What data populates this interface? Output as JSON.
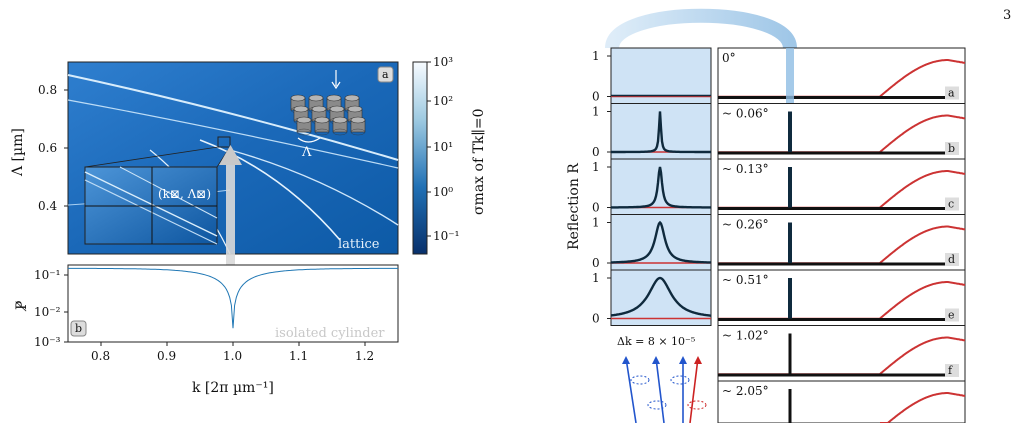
{
  "page_number": "3",
  "left_figure": {
    "panel_a": {
      "badge": "a",
      "lattice_label": "lattice",
      "y_label": "Λ [µm]",
      "y_ticks": [
        "0.8",
        "0.6",
        "0.4"
      ],
      "colorbar_label": "σmax of Tk∥=0",
      "colorbar_ticks": [
        "10³",
        "10²",
        "10¹",
        "10⁰",
        "10⁻¹"
      ],
      "inset_label": "(k⊠, Λ⊠)",
      "lambda_label": "Λ"
    },
    "panel_b": {
      "badge": "b",
      "y_label": "P̸",
      "y_ticks": [
        "10⁻¹",
        "10⁻²",
        "10⁻³"
      ],
      "isolated_label": "isolated cylinder",
      "x_ticks": [
        "0.8",
        "0.9",
        "1.0",
        "1.1",
        "1.2"
      ],
      "x_label": "k [2π µm⁻¹]"
    }
  },
  "right_figure": {
    "y_label": "Reflection R",
    "rows": [
      {
        "angle": "0°",
        "badge": "a"
      },
      {
        "angle": "~ 0.06°",
        "badge": "b"
      },
      {
        "angle": "~ 0.13°",
        "badge": "c"
      },
      {
        "angle": "~ 0.26°",
        "badge": "d"
      },
      {
        "angle": "~ 0.51°",
        "badge": "e"
      },
      {
        "angle": "~ 1.02°",
        "badge": "f"
      },
      {
        "angle": "~ 2.05°",
        "badge": ""
      }
    ],
    "y_ticks": [
      "1",
      "0"
    ],
    "delta_k": "Δk = 8 × 10⁻⁵"
  },
  "colors": {
    "map_dark": "#0b4e8f",
    "map_light": "#7fb5e6",
    "curve_blue": "#1f77b4",
    "curve_red": "#cc3333",
    "peak_dark": "#0f2a3d",
    "zoom_bg": "#cfe3f5"
  }
}
